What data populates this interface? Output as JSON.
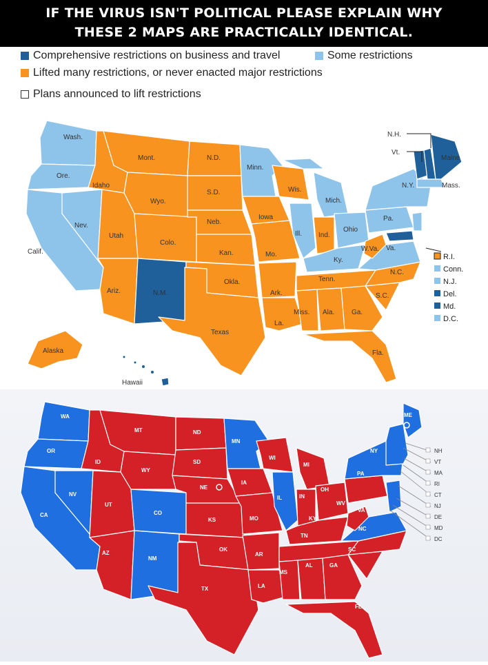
{
  "header": {
    "line1": "IF THE VIRUS ISN'T POLITICAL PLEASE EXPLAIN WHY",
    "line2": "THESE 2 MAPS ARE PRACTICALLY IDENTICAL."
  },
  "legend": {
    "comprehensive": "Comprehensive restrictions on business and travel",
    "some": "Some restrictions",
    "lifted": "Lifted many restrictions, or never enacted major restrictions",
    "plans": "Plans announced to lift restrictions",
    "colors": {
      "dark_blue": "#1f5f9a",
      "light_blue": "#8ec3ea",
      "orange": "#f7931e"
    }
  },
  "restrictions_map": {
    "labels": {
      "wash": "Wash.",
      "ore": "Ore.",
      "calif": "Calif.",
      "idaho": "Idaho",
      "nev": "Nev.",
      "mont": "Mont.",
      "wyo": "Wyo.",
      "utah": "Utah",
      "colo": "Colo.",
      "ariz": "Ariz.",
      "nm": "N.M.",
      "nd": "N.D.",
      "sd": "S.D.",
      "neb": "Neb.",
      "kan": "Kan.",
      "okla": "Okla.",
      "texas": "Texas",
      "minn": "Minn.",
      "iowa": "Iowa",
      "mo": "Mo.",
      "ark": "Ark.",
      "la": "La.",
      "wis": "Wis.",
      "ill": "Ill.",
      "mich": "Mich.",
      "ind": "Ind.",
      "ohio": "Ohio",
      "ky": "Ky.",
      "tenn": "Tenn.",
      "miss": "Miss.",
      "ala": "Ala.",
      "ga": "Ga.",
      "fla": "Fla.",
      "sc": "S.C.",
      "nc": "N.C.",
      "va": "Va.",
      "wva": "W.Va.",
      "pa": "Pa.",
      "ny": "N.Y.",
      "nh": "N.H.",
      "vt": "Vt.",
      "maine": "Maine",
      "mass": "Mass.",
      "alaska": "Alaska",
      "hawaii": "Hawaii"
    },
    "east_key": [
      "R.I.",
      "Conn.",
      "N.J.",
      "Del.",
      "Md.",
      "D.C."
    ]
  },
  "election_map": {
    "colors": {
      "red": "#d42027",
      "blue": "#1f6fe0"
    },
    "labels": {
      "wa": "WA",
      "or": "OR",
      "ca": "CA",
      "nv": "NV",
      "id": "ID",
      "mt": "MT",
      "wy": "WY",
      "ut": "UT",
      "co": "CO",
      "az": "AZ",
      "nm": "NM",
      "nd": "ND",
      "sd": "SD",
      "ne": "NE",
      "ks": "KS",
      "ok": "OK",
      "tx": "TX",
      "mn": "MN",
      "ia": "IA",
      "mo": "MO",
      "ar": "AR",
      "la": "LA",
      "wi": "WI",
      "il": "IL",
      "mi": "MI",
      "in": "IN",
      "oh": "OH",
      "ky": "KY",
      "tn": "TN",
      "ms": "MS",
      "al": "AL",
      "ga": "GA",
      "fl": "FL",
      "sc": "SC",
      "nc": "NC",
      "va": "VA",
      "wv": "WV",
      "pa": "PA",
      "ny": "NY",
      "me": "ME"
    },
    "east_key": [
      "NH",
      "VT",
      "MA",
      "RI",
      "CT",
      "NJ",
      "DE",
      "MD",
      "DC"
    ]
  }
}
